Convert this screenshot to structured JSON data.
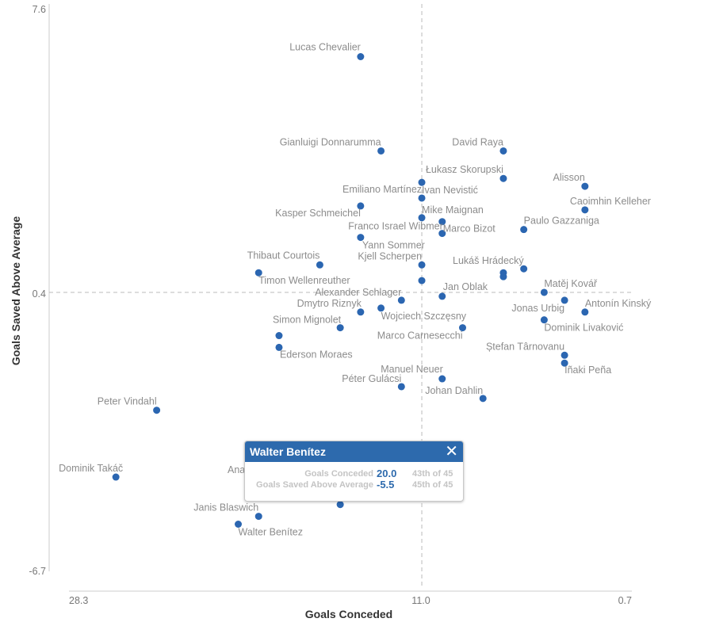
{
  "chart_data": {
    "type": "scatter",
    "xlabel": "Goals Conceded",
    "ylabel": "Goals Saved Above Average",
    "xlim": [
      28.3,
      0.7
    ],
    "x_reversed": true,
    "ylim": [
      -6.7,
      7.6
    ],
    "x_ticks": [
      "28.3",
      "11.0",
      "0.7"
    ],
    "y_ticks": [
      "7.6",
      "0.4",
      "-6.7"
    ],
    "reference_lines": {
      "x": 11.0,
      "y": 0.4
    },
    "grid": false,
    "point_color": "#2b66b1",
    "points": [
      {
        "name": "Lucas Chevalier",
        "x": 14,
        "y": 6.4
      },
      {
        "name": "Gianluigi Donnarumma",
        "x": 13,
        "y": 4.0
      },
      {
        "name": "David Raya",
        "x": 7,
        "y": 4.0
      },
      {
        "name": "Łukasz Skorupski",
        "x": 7,
        "y": 3.3
      },
      {
        "name": "Alisson",
        "x": 3,
        "y": 3.1
      },
      {
        "name": "Caoimhin Kelleher",
        "x": 3,
        "y": 2.5
      },
      {
        "name": "Emiliano Martínez",
        "x": 11,
        "y": 3.2
      },
      {
        "name": "Ivan Nevistić",
        "x": 11,
        "y": 2.8
      },
      {
        "name": "Mike Maignan",
        "x": 11,
        "y": 2.3
      },
      {
        "name": "Franco Israel Wibmer",
        "x": 10,
        "y": 2.2
      },
      {
        "name": "Marco Bizot",
        "x": 10,
        "y": 1.9
      },
      {
        "name": "Paulo Gazzaniga",
        "x": 6,
        "y": 2.0
      },
      {
        "name": "Kasper Schmeichel",
        "x": 14,
        "y": 2.6
      },
      {
        "name": "Yann Sommer",
        "x": 14,
        "y": 1.8
      },
      {
        "name": "Kjell Scherpen",
        "x": 11,
        "y": 1.1
      },
      {
        "name": "Thibaut Courtois",
        "x": 16,
        "y": 1.1
      },
      {
        "name": "Timon Wellenreuther",
        "x": 19,
        "y": 0.9
      },
      {
        "name": "",
        "x": 11,
        "y": 0.7
      },
      {
        "name": "Lukáš Hrádecký",
        "x": 6,
        "y": 1.0
      },
      {
        "name": "",
        "x": 7,
        "y": 0.9
      },
      {
        "name": "",
        "x": 7,
        "y": 0.8
      },
      {
        "name": "Jan Oblak",
        "x": 10,
        "y": 0.3
      },
      {
        "name": "Matěj Kovář",
        "x": 5,
        "y": 0.4
      },
      {
        "name": "Jonas Urbig",
        "x": 4,
        "y": 0.2
      },
      {
        "name": "Antonín Kinský",
        "x": 3,
        "y": -0.1
      },
      {
        "name": "Alexander Schlager",
        "x": 12,
        "y": 0.2
      },
      {
        "name": "Dmytro Riznyk",
        "x": 14,
        "y": -0.1
      },
      {
        "name": "Wojciech Szczęsny",
        "x": 13,
        "y": 0.0
      },
      {
        "name": "Simon Mignolet",
        "x": 15,
        "y": -0.5
      },
      {
        "name": "",
        "x": 18,
        "y": -0.7
      },
      {
        "name": "Ederson Moraes",
        "x": 18,
        "y": -1.0
      },
      {
        "name": "Dominik Livaković",
        "x": 5,
        "y": -0.3
      },
      {
        "name": "Marco Carnesecchi",
        "x": 9,
        "y": -0.5
      },
      {
        "name": "Ștefan Târnovanu",
        "x": 4,
        "y": -1.2
      },
      {
        "name": "Iñaki Peña",
        "x": 4,
        "y": -1.4
      },
      {
        "name": "Manuel Neuer",
        "x": 10,
        "y": -1.8
      },
      {
        "name": "Péter Gulácsi",
        "x": 12,
        "y": -2.0
      },
      {
        "name": "Johan Dahlin",
        "x": 8,
        "y": -2.3
      },
      {
        "name": "Peter Vindahl",
        "x": 24,
        "y": -2.6
      },
      {
        "name": "Dominik Takáč",
        "x": 26,
        "y": -4.3
      },
      {
        "name": "",
        "x": 15,
        "y": -5.0
      },
      {
        "name": "Janis Blaswich",
        "x": 19,
        "y": -5.3
      },
      {
        "name": "Walter Benítez",
        "x": 20,
        "y": -5.5
      }
    ],
    "partial_label": "Ana"
  },
  "tooltip": {
    "title": "Walter Benítez",
    "rows": [
      {
        "label": "Goals Conceded",
        "value": "20.0",
        "rank": "43th of 45"
      },
      {
        "label": "Goals Saved Above Average",
        "value": "-5.5",
        "rank": "45th of 45"
      }
    ]
  }
}
